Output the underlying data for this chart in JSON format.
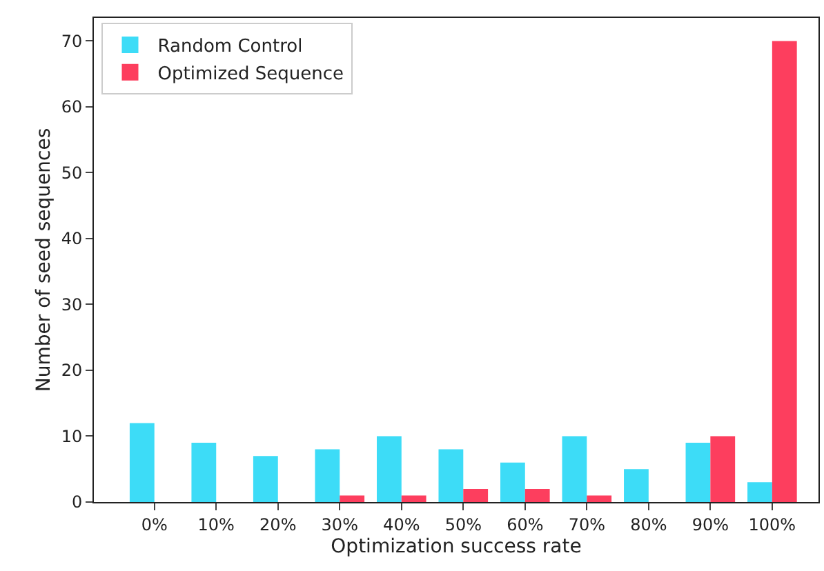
{
  "chart_data": {
    "type": "bar",
    "xlabel": "Optimization success rate",
    "ylabel": "Number of seed sequences",
    "categories": [
      "0%",
      "10%",
      "20%",
      "30%",
      "40%",
      "50%",
      "60%",
      "70%",
      "80%",
      "90%",
      "100%"
    ],
    "series": [
      {
        "name": "Random Control",
        "color": "#3ddcf7",
        "values": [
          12,
          9,
          7,
          8,
          10,
          8,
          6,
          10,
          5,
          9,
          3
        ]
      },
      {
        "name": "Optimized Sequence",
        "color": "#fd3e5e",
        "values": [
          0,
          0,
          0,
          1,
          1,
          2,
          2,
          1,
          0,
          10,
          70
        ]
      }
    ],
    "ylim": [
      0,
      73.5
    ],
    "yticks": [
      0,
      10,
      20,
      30,
      40,
      50,
      60,
      70
    ],
    "legend": "top left"
  }
}
